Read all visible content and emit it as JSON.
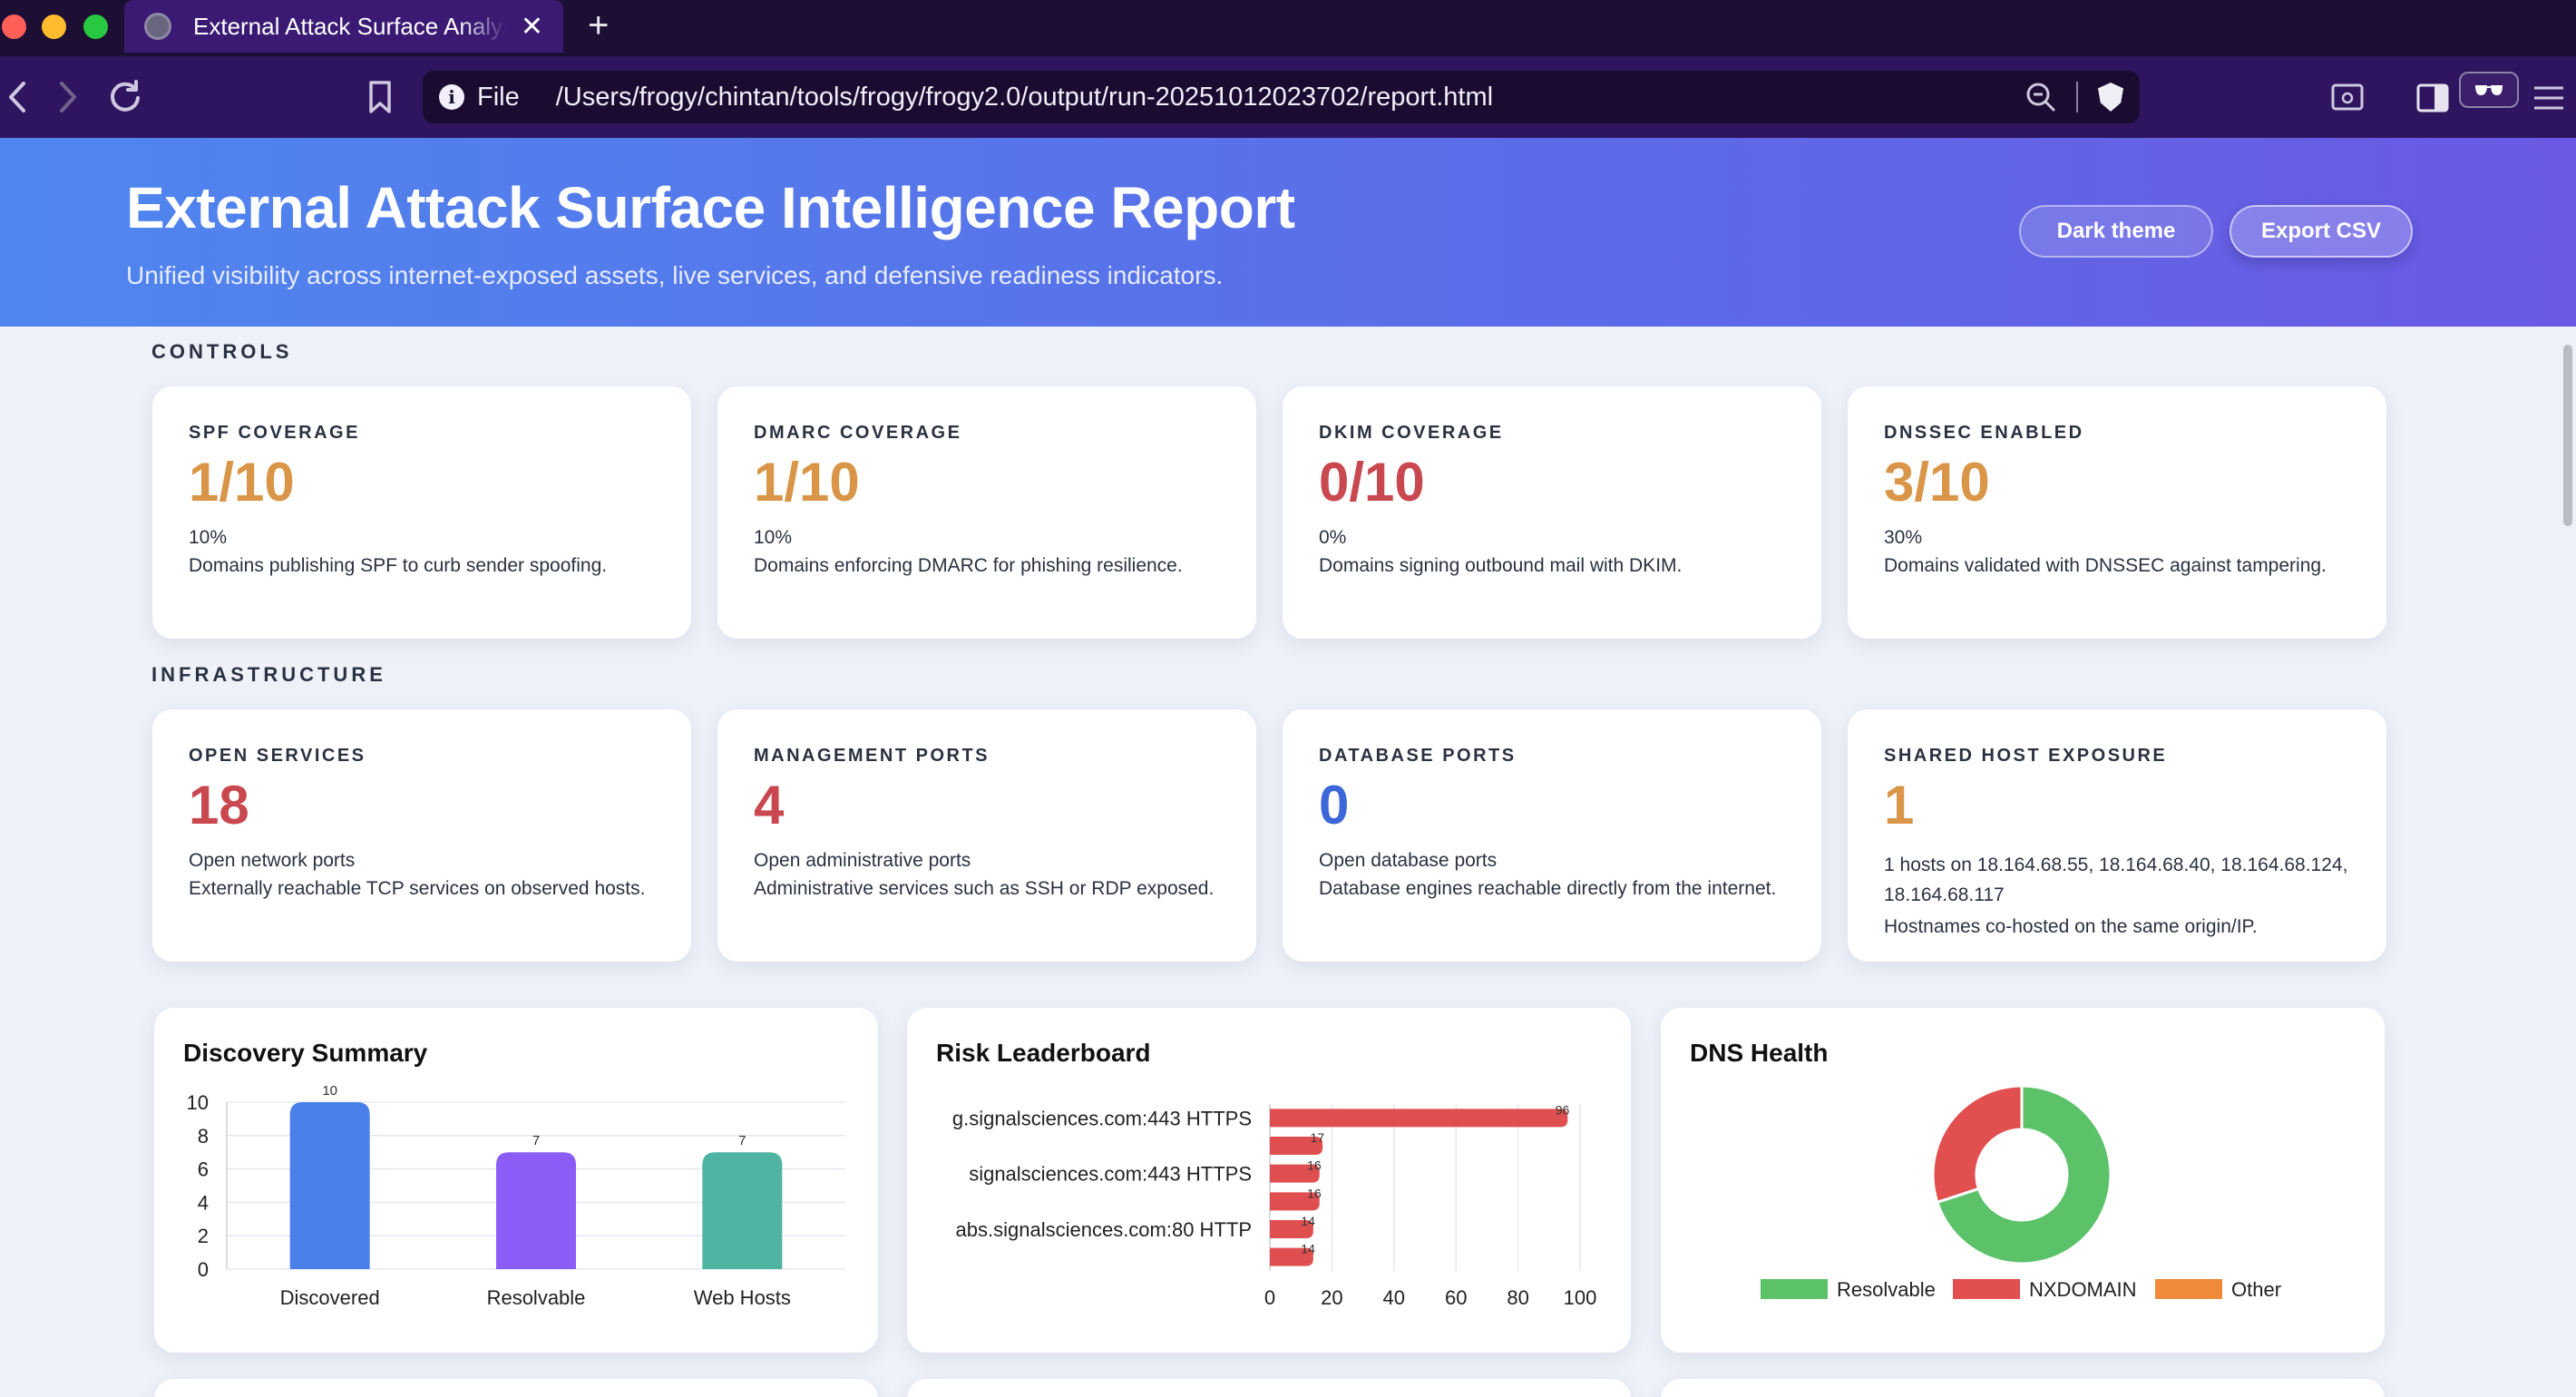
{
  "browser": {
    "tab_title": "External Attack Surface Analysis",
    "tab_close": "✕",
    "new_tab": "+",
    "url_scheme": "File",
    "url": "/Users/frogy/chintan/tools/frogy/frogy2.0/output/run-20251012023702/report.html",
    "icons": [
      "back-icon",
      "forward-icon",
      "reload-icon",
      "bookmark-icon",
      "info-icon",
      "zoom-icon",
      "brave-shield-icon",
      "screenshot-icon",
      "sidebar-icon",
      "reader-mode-icon",
      "menu-icon"
    ]
  },
  "header": {
    "title": "External Attack Surface Intelligence Report",
    "subtitle": "Unified visibility across internet-exposed assets, live services, and defensive readiness indicators.",
    "dark_theme_label": "Dark theme",
    "export_label": "Export CSV"
  },
  "controls": {
    "section_label": "CONTROLS",
    "cards": [
      {
        "label": "SPF COVERAGE",
        "value": "1/10",
        "pct": "10%",
        "desc": "Domains publishing SPF to curb sender spoofing.",
        "color": "#d99648"
      },
      {
        "label": "DMARC COVERAGE",
        "value": "1/10",
        "pct": "10%",
        "desc": "Domains enforcing DMARC for phishing resilience.",
        "color": "#d99648"
      },
      {
        "label": "DKIM COVERAGE",
        "value": "0/10",
        "pct": "0%",
        "desc": "Domains signing outbound mail with DKIM.",
        "color": "#c94850"
      },
      {
        "label": "DNSSEC ENABLED",
        "value": "3/10",
        "pct": "30%",
        "desc": "Domains validated with DNSSEC against tampering.",
        "color": "#d99648"
      }
    ]
  },
  "infrastructure": {
    "section_label": "INFRASTRUCTURE",
    "cards": [
      {
        "label": "OPEN SERVICES",
        "value": "18",
        "sub": "Open network ports",
        "desc": "Externally reachable TCP services on observed hosts.",
        "color": "#c94850"
      },
      {
        "label": "MANAGEMENT PORTS",
        "value": "4",
        "sub": "Open administrative ports",
        "desc": "Administrative services such as SSH or RDP exposed.",
        "color": "#c94850"
      },
      {
        "label": "DATABASE PORTS",
        "value": "0",
        "sub": "Open database ports",
        "desc": "Database engines reachable directly from the internet.",
        "color": "#3d67d8"
      },
      {
        "label": "SHARED HOST EXPOSURE",
        "value": "1",
        "sub": "1 hosts on 18.164.68.55, 18.164.68.40, 18.164.68.124, 18.164.68.117",
        "desc": "Hostnames co-hosted on the same origin/IP.",
        "color": "#d99648"
      }
    ]
  },
  "panels": {
    "discovery_title": "Discovery Summary",
    "risk_title": "Risk Leaderboard",
    "dns_title": "DNS Health"
  },
  "chart_data": [
    {
      "type": "bar",
      "title": "Discovery Summary",
      "categories": [
        "Discovered",
        "Resolvable",
        "Web Hosts"
      ],
      "values": [
        10,
        7,
        7
      ],
      "colors": [
        "#4a80ea",
        "#8b5cf6",
        "#4fb5a2"
      ],
      "ylim": [
        0,
        10
      ],
      "yticks": [
        0,
        2,
        4,
        6,
        8,
        10
      ],
      "grid": true
    },
    {
      "type": "bar",
      "orientation": "horizontal",
      "title": "Risk Leaderboard",
      "categories": [
        "g.signalsciences.com:443 HTTPS",
        "",
        "signalsciences.com:443 HTTPS",
        "",
        "abs.signalsciences.com:80 HTTP",
        ""
      ],
      "values": [
        96,
        17,
        16,
        16,
        14,
        14
      ],
      "color": "#e04f4f",
      "xlim": [
        0,
        100
      ],
      "xticks": [
        0,
        20,
        40,
        60,
        80,
        100
      ],
      "grid": true
    },
    {
      "type": "pie",
      "donut": true,
      "title": "DNS Health",
      "labels": [
        "Resolvable",
        "NXDOMAIN",
        "Other"
      ],
      "values": [
        7,
        3,
        0
      ],
      "colors": [
        "#5cc26a",
        "#e24f4f",
        "#f08a3a"
      ],
      "legend": "bottom"
    }
  ]
}
